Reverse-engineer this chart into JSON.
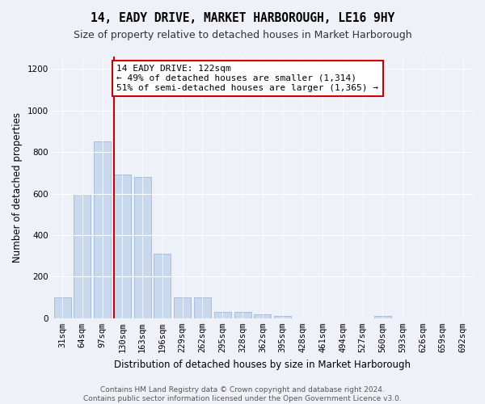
{
  "title": "14, EADY DRIVE, MARKET HARBOROUGH, LE16 9HY",
  "subtitle": "Size of property relative to detached houses in Market Harborough",
  "xlabel": "Distribution of detached houses by size in Market Harborough",
  "ylabel": "Number of detached properties",
  "bar_values": [
    100,
    600,
    850,
    690,
    680,
    310,
    100,
    100,
    30,
    30,
    20,
    10,
    0,
    0,
    0,
    0,
    10,
    0,
    0,
    0,
    0
  ],
  "categories": [
    "31sqm",
    "64sqm",
    "97sqm",
    "130sqm",
    "163sqm",
    "196sqm",
    "229sqm",
    "262sqm",
    "295sqm",
    "328sqm",
    "362sqm",
    "395sqm",
    "428sqm",
    "461sqm",
    "494sqm",
    "527sqm",
    "560sqm",
    "593sqm",
    "626sqm",
    "659sqm",
    "692sqm"
  ],
  "bar_color": "#c9d9ed",
  "bar_edge_color": "#a0b8d8",
  "red_line_x": 2.57,
  "annotation_text": "14 EADY DRIVE: 122sqm\n← 49% of detached houses are smaller (1,314)\n51% of semi-detached houses are larger (1,365) →",
  "annotation_box_color": "#ffffff",
  "annotation_box_edge": "#cc0000",
  "ylim": [
    0,
    1260
  ],
  "yticks": [
    0,
    200,
    400,
    600,
    800,
    1000,
    1200
  ],
  "background_color": "#eef2f8",
  "footer_text": "Contains HM Land Registry data © Crown copyright and database right 2024.\nContains public sector information licensed under the Open Government Licence v3.0.",
  "title_fontsize": 10.5,
  "subtitle_fontsize": 9,
  "xlabel_fontsize": 8.5,
  "ylabel_fontsize": 8.5,
  "tick_fontsize": 7.5,
  "annotation_fontsize": 8,
  "footer_fontsize": 6.5
}
